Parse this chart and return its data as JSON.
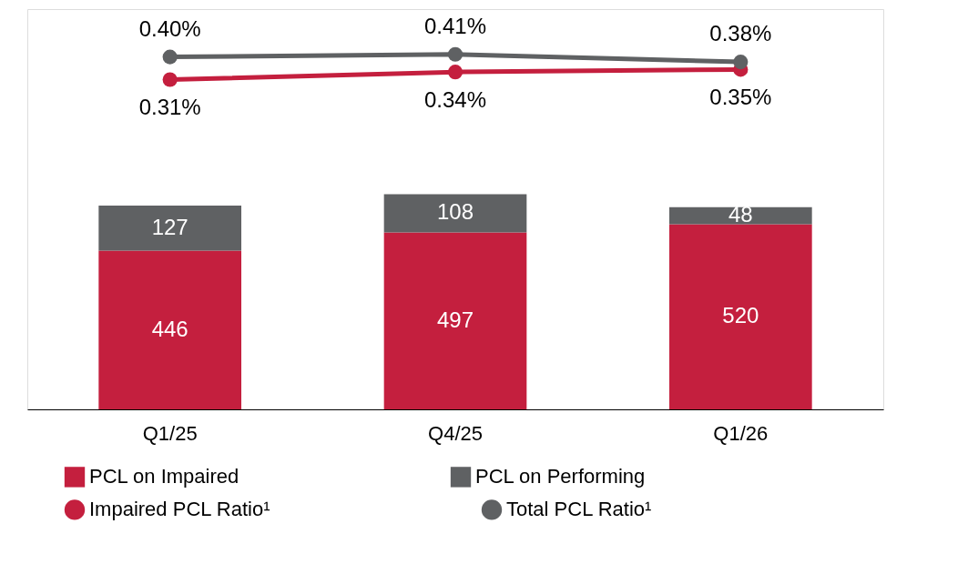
{
  "chart_data": {
    "type": "bar",
    "stacked": true,
    "categories": [
      "Q1/25",
      "Q4/25",
      "Q1/26"
    ],
    "series": [
      {
        "name": "PCL on Impaired",
        "color": "#c41f3e",
        "values": [
          446,
          497,
          520
        ],
        "value_labels": [
          "446",
          "497",
          "520"
        ]
      },
      {
        "name": "PCL on Performing",
        "color": "#5f6163",
        "values": [
          127,
          108,
          48
        ],
        "value_labels": [
          "127",
          "108",
          "48"
        ]
      },
      {
        "name": "Impaired PCL Ratio¹",
        "type": "line",
        "axis": "y2",
        "color": "#c41f3e",
        "values": [
          0.31,
          0.34,
          0.35
        ],
        "value_labels": [
          "0.31%",
          "0.34%",
          "0.35%"
        ]
      },
      {
        "name": "Total PCL Ratio¹",
        "type": "line",
        "axis": "y2",
        "color": "#5f6163",
        "values": [
          0.4,
          0.41,
          0.38
        ],
        "value_labels": [
          "0.40%",
          "0.41%",
          "0.38%"
        ]
      }
    ],
    "ylim": [
      0,
      1125
    ],
    "y2lim": [
      -1.0,
      0.59
    ],
    "tick_labels": "x",
    "grid": false,
    "legend": "bottom",
    "marker": "circle"
  }
}
